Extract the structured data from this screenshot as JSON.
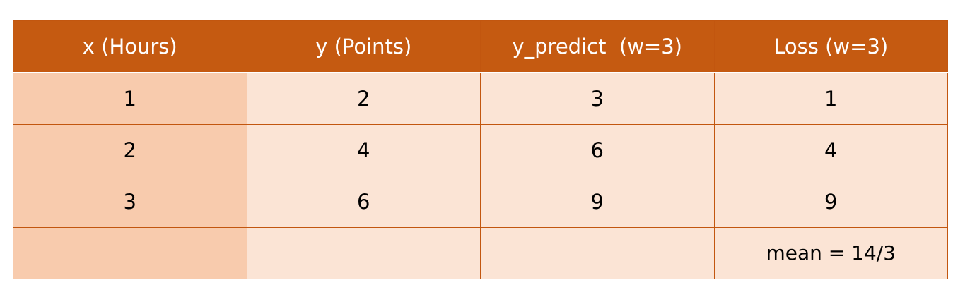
{
  "table": {
    "headers": [
      "x (Hours)",
      "y (Points)",
      "y_predict  (w=3)",
      "Loss (w=3)"
    ],
    "rows": [
      [
        "1",
        "2",
        "3",
        "1"
      ],
      [
        "2",
        "4",
        "6",
        "4"
      ],
      [
        "3",
        "6",
        "9",
        "9"
      ],
      [
        "",
        "",
        "",
        "mean = 14/3"
      ]
    ]
  },
  "colors": {
    "header_bg": "#c55a11",
    "header_text": "#ffffff",
    "first_col_bg": "#f8cbad",
    "body_bg": "#fbe4d5",
    "border": "#c2560f"
  }
}
